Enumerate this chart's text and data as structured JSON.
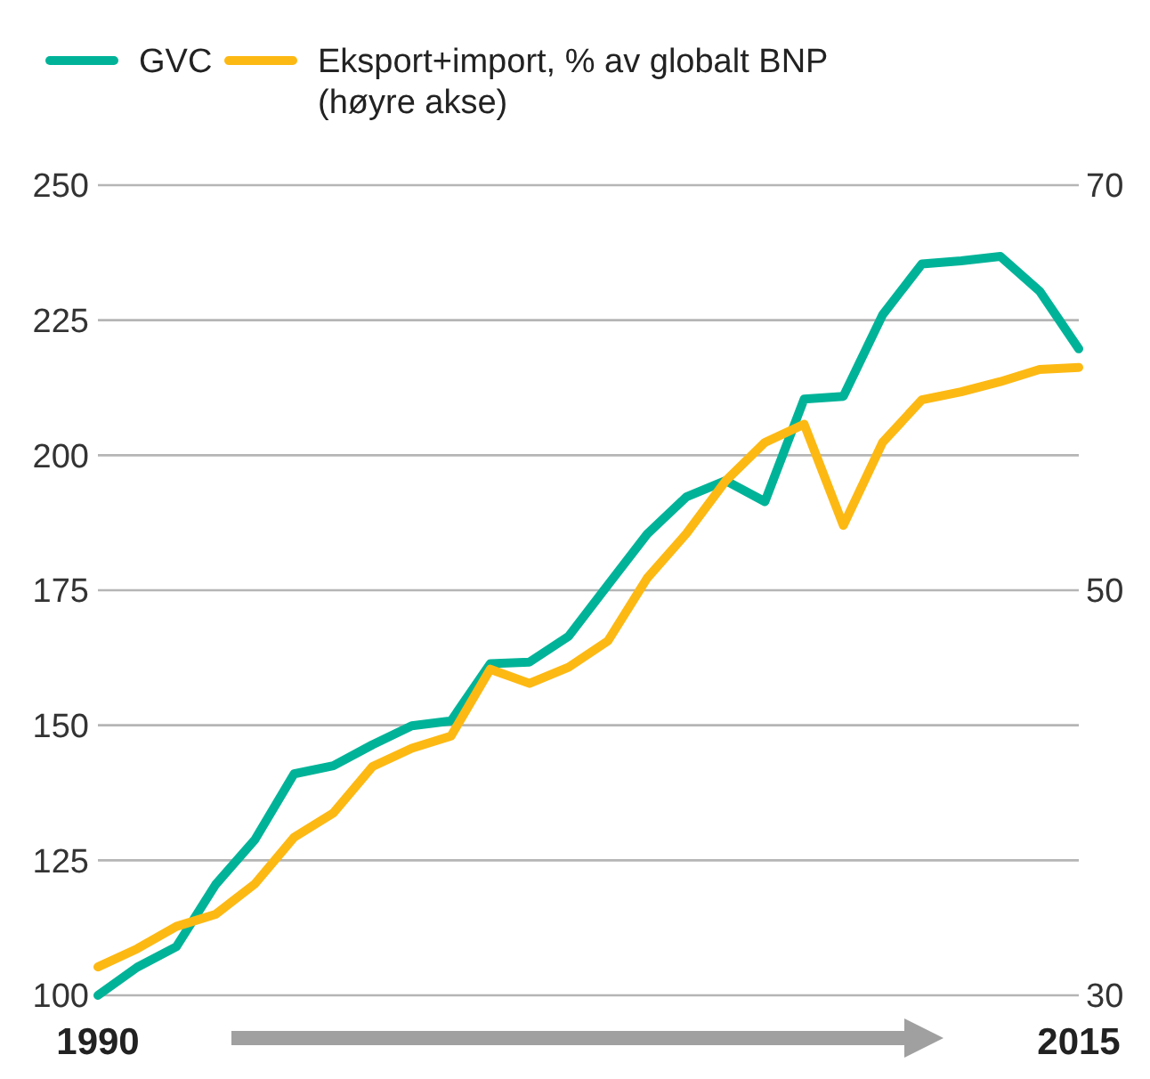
{
  "chart_data": {
    "type": "line",
    "x": [
      1990,
      1991,
      1992,
      1993,
      1994,
      1995,
      1996,
      1997,
      1998,
      1999,
      2000,
      2001,
      2002,
      2003,
      2004,
      2005,
      2006,
      2007,
      2008,
      2009,
      2010,
      2011,
      2012,
      2013,
      2014,
      2015
    ],
    "xlim": [
      1990,
      2015
    ],
    "xticks": [
      1990,
      2015
    ],
    "ylim": [
      100,
      250
    ],
    "yticks": [
      100,
      125,
      150,
      175,
      200,
      225,
      250
    ],
    "y2lim": [
      30,
      70
    ],
    "y2ticks": [
      30,
      50,
      70
    ],
    "grid": "y",
    "legend": "top left",
    "line_style": "solid",
    "marker": "none",
    "series": [
      {
        "name": "GVC",
        "color": "#00b398",
        "values": [
          100,
          105.2,
          109,
          120.5,
          128.8,
          141,
          142.5,
          146.4,
          149.9,
          150.8,
          161.4,
          161.7,
          166.5,
          176,
          185.4,
          192.3,
          195.3,
          191.4,
          210.4,
          210.9,
          226,
          235.4,
          236,
          236.8,
          230.4,
          219.7
        ]
      },
      {
        "name": "Eksport+import, % av globalt BNP (høyre akse)",
        "color": "#fdb913",
        "axis": "y2",
        "values": [
          31.4,
          32.3,
          33.4,
          34.0,
          35.5,
          37.8,
          39.0,
          41.3,
          42.2,
          42.8,
          46.1,
          45.4,
          46.2,
          47.5,
          50.6,
          52.8,
          55.4,
          57.3,
          58.2,
          53.2,
          57.3,
          59.4,
          59.8,
          60.3,
          60.9,
          61.0
        ]
      }
    ]
  }
}
